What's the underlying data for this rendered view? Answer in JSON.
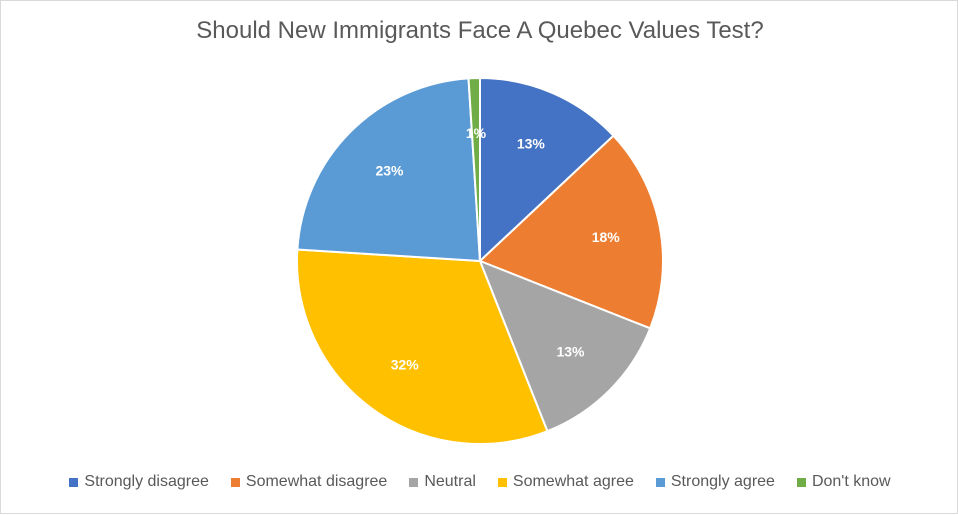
{
  "chart_data": {
    "type": "pie",
    "title": "Should New Immigrants Face A Quebec Values Test?",
    "categories": [
      "Strongly disagree",
      "Somewhat disagree",
      "Neutral",
      "Somewhat agree",
      "Strongly agree",
      "Don't know"
    ],
    "values": [
      13,
      18,
      13,
      32,
      23,
      1
    ],
    "labels": [
      "13%",
      "18%",
      "13%",
      "32%",
      "23%",
      "1%"
    ],
    "colors": [
      "#4472C4",
      "#ED7D31",
      "#A5A5A5",
      "#FFC000",
      "#5B9BD5",
      "#70AD47"
    ],
    "start_angle": "12 o'clock",
    "direction": "clockwise",
    "legend_position": "bottom"
  }
}
